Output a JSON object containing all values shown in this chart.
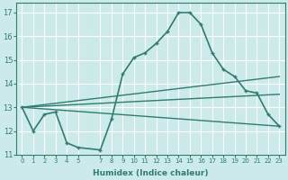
{
  "xlabel": "Humidex (Indice chaleur)",
  "background_color": "#cceaea",
  "grid_color": "#ffffff",
  "line_color": "#2e7d6e",
  "xlim": [
    -0.5,
    23.5
  ],
  "ylim": [
    11.0,
    17.4
  ],
  "yticks": [
    11,
    12,
    13,
    14,
    15,
    16,
    17
  ],
  "xticks": [
    0,
    1,
    2,
    3,
    4,
    5,
    7,
    8,
    9,
    10,
    11,
    12,
    13,
    14,
    15,
    16,
    17,
    18,
    19,
    20,
    21,
    22,
    23
  ],
  "main_x": [
    0,
    1,
    2,
    3,
    4,
    5,
    7,
    8,
    9,
    10,
    11,
    12,
    13,
    14,
    15,
    16,
    17,
    18,
    19,
    20,
    21,
    22,
    23
  ],
  "main_y": [
    13.0,
    12.0,
    12.7,
    12.8,
    11.5,
    11.3,
    11.2,
    12.5,
    14.4,
    15.1,
    15.3,
    15.7,
    16.2,
    17.0,
    17.0,
    16.5,
    15.3,
    14.6,
    14.3,
    13.7,
    13.6,
    12.7,
    12.2
  ],
  "trend1_x": [
    0,
    23
  ],
  "trend1_y": [
    13.0,
    14.3
  ],
  "trend2_x": [
    0,
    23
  ],
  "trend2_y": [
    13.0,
    13.55
  ],
  "trend3_x": [
    0,
    23
  ],
  "trend3_y": [
    13.0,
    12.2
  ]
}
